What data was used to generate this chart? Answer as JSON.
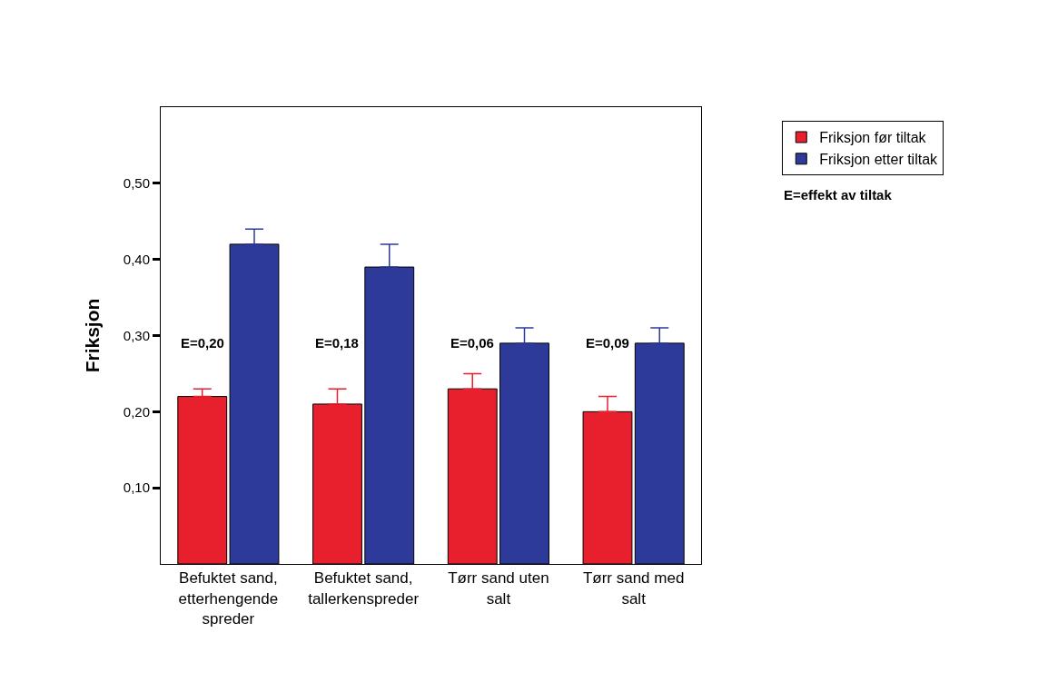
{
  "chart_data": {
    "type": "bar",
    "ylabel": "Friksjon",
    "categories": [
      "Befuktet sand, etterhengende spreder",
      "Befuktet sand, tallerkenspreder",
      "Tørr sand uten salt",
      "Tørr sand med salt"
    ],
    "series": [
      {
        "name": "Friksjon før tiltak",
        "color": "#e8202e",
        "values": [
          0.22,
          0.21,
          0.23,
          0.2
        ],
        "errors": [
          [
            0.22,
            0.23
          ],
          [
            0.21,
            0.23
          ],
          [
            0.23,
            0.25
          ],
          [
            0.2,
            0.22
          ]
        ]
      },
      {
        "name": "Friksjon etter tiltak",
        "color": "#2e3a9a",
        "values": [
          0.42,
          0.39,
          0.29,
          0.29
        ],
        "errors": [
          [
            0.42,
            0.44
          ],
          [
            0.39,
            0.42
          ],
          [
            0.29,
            0.31
          ],
          [
            0.29,
            0.31
          ]
        ]
      }
    ],
    "ylim": [
      0,
      0.6
    ],
    "yticks": [
      {
        "value": 0.1,
        "label": "0,10"
      },
      {
        "value": 0.2,
        "label": "0,20"
      },
      {
        "value": 0.3,
        "label": "0,30"
      },
      {
        "value": 0.4,
        "label": "0,40"
      },
      {
        "value": 0.5,
        "label": "0,50"
      }
    ],
    "grid": false,
    "legend": "top right",
    "annotations": [
      {
        "text": "E=0,20",
        "x": "Befuktet sand, etterhengende spreder",
        "y": 0.29
      },
      {
        "text": "E=0,18",
        "x": "Befuktet sand, tallerkenspreder",
        "y": 0.29
      },
      {
        "text": "E=0,06",
        "x": "Tørr sand uten salt",
        "y": 0.29
      },
      {
        "text": "E=0,09",
        "x": "Tørr sand med salt",
        "y": 0.29
      },
      "E=effekt av tiltak"
    ]
  }
}
